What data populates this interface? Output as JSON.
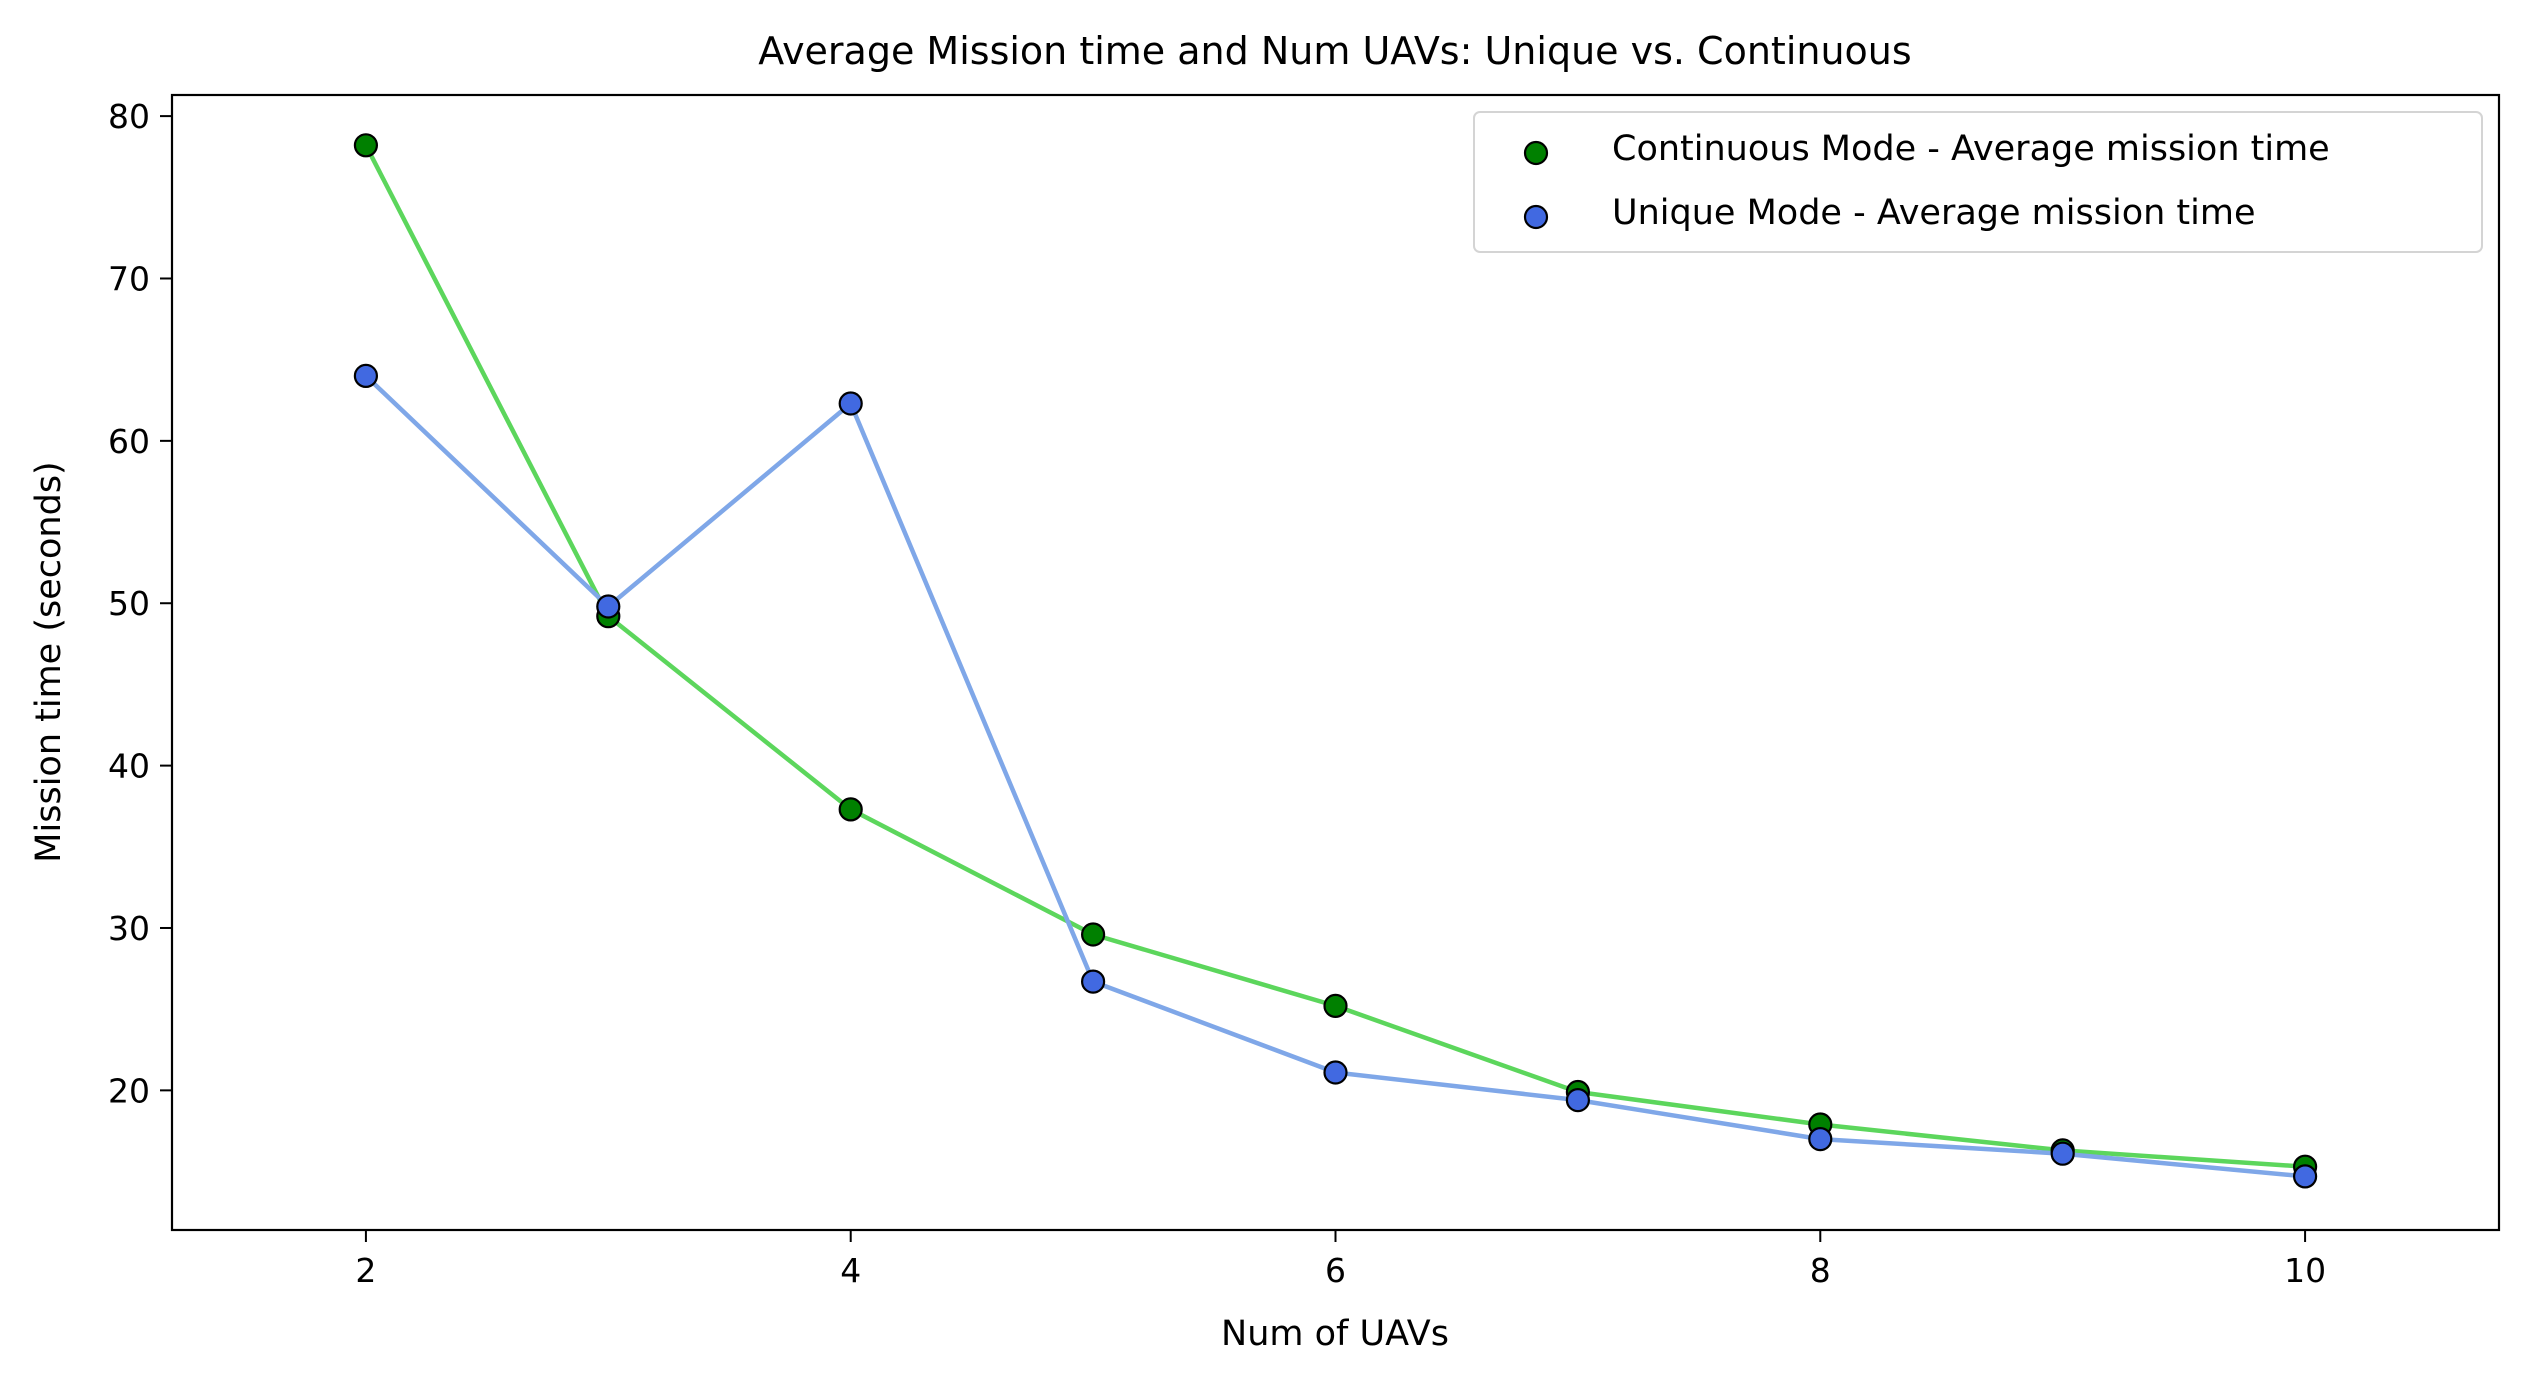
{
  "chart_data": {
    "type": "line",
    "title": "Average Mission time and Num UAVs: Unique vs. Continuous",
    "xlabel": "Num of UAVs",
    "ylabel": "Mission time (seconds)",
    "x": [
      2,
      3,
      4,
      5,
      6,
      7,
      8,
      9,
      10
    ],
    "xlim": [
      1.2,
      10.8
    ],
    "ylim": [
      11.4,
      81.3
    ],
    "xticks": [
      2,
      4,
      6,
      8,
      10
    ],
    "yticks": [
      20,
      30,
      40,
      50,
      60,
      70,
      80
    ],
    "grid": false,
    "legend_position": "top-right",
    "series": [
      {
        "name": "Continuous Mode - Average mission time",
        "values": [
          78.2,
          49.2,
          37.3,
          29.6,
          25.2,
          19.9,
          17.9,
          16.3,
          15.3
        ],
        "line_color": "#5cd65c",
        "marker_color": "#008000"
      },
      {
        "name": "Unique Mode - Average mission time",
        "values": [
          64.0,
          49.8,
          62.3,
          26.7,
          21.1,
          19.4,
          17.0,
          16.1,
          14.7
        ],
        "line_color": "#7fa7e8",
        "marker_color": "#4169e1"
      }
    ]
  }
}
